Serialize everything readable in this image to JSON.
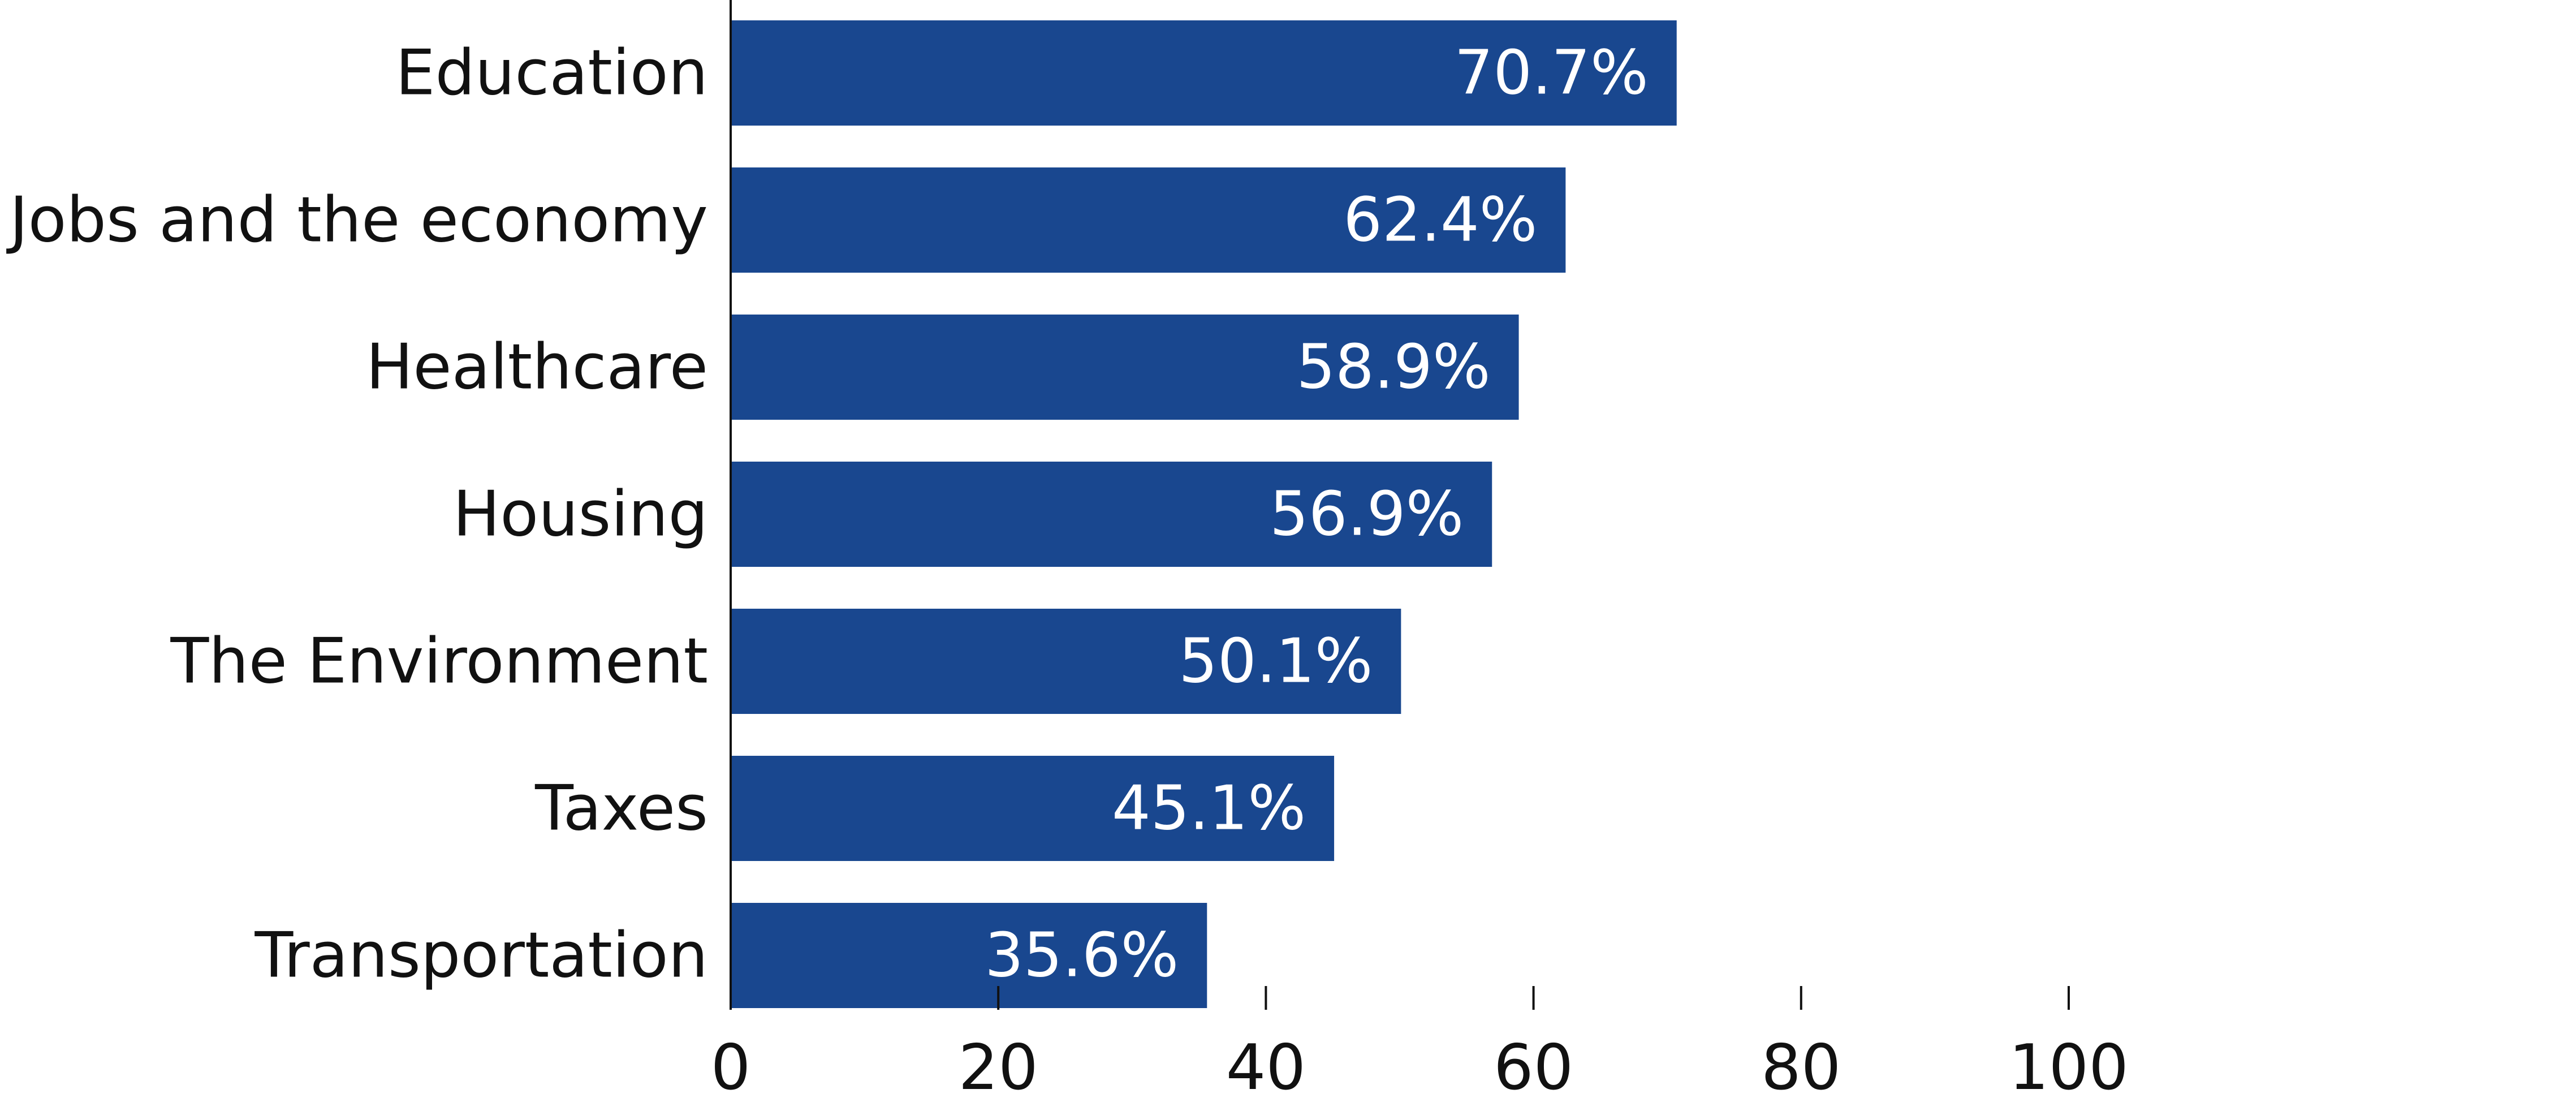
{
  "chart_data": {
    "type": "bar",
    "orientation": "horizontal",
    "categories": [
      "Education",
      "Jobs and the economy",
      "Healthcare",
      "Housing",
      "The Environment",
      "Taxes",
      "Transportation"
    ],
    "values": [
      70.7,
      62.4,
      58.9,
      56.9,
      50.1,
      45.1,
      35.6
    ],
    "data_labels": [
      "70.7%",
      "62.4%",
      "58.9%",
      "56.9%",
      "50.1%",
      "45.1%",
      "35.6%"
    ],
    "xlim": [
      0,
      100
    ],
    "x_ticks": [
      0,
      20,
      40,
      60,
      80,
      100
    ],
    "x_tick_labels": [
      "0",
      "20",
      "40",
      "60",
      "80",
      "100"
    ],
    "title": "",
    "xlabel": "",
    "ylabel": "",
    "grid": false,
    "legend": "none",
    "bar_color": "#19478f",
    "label_color": "#ffffff"
  }
}
